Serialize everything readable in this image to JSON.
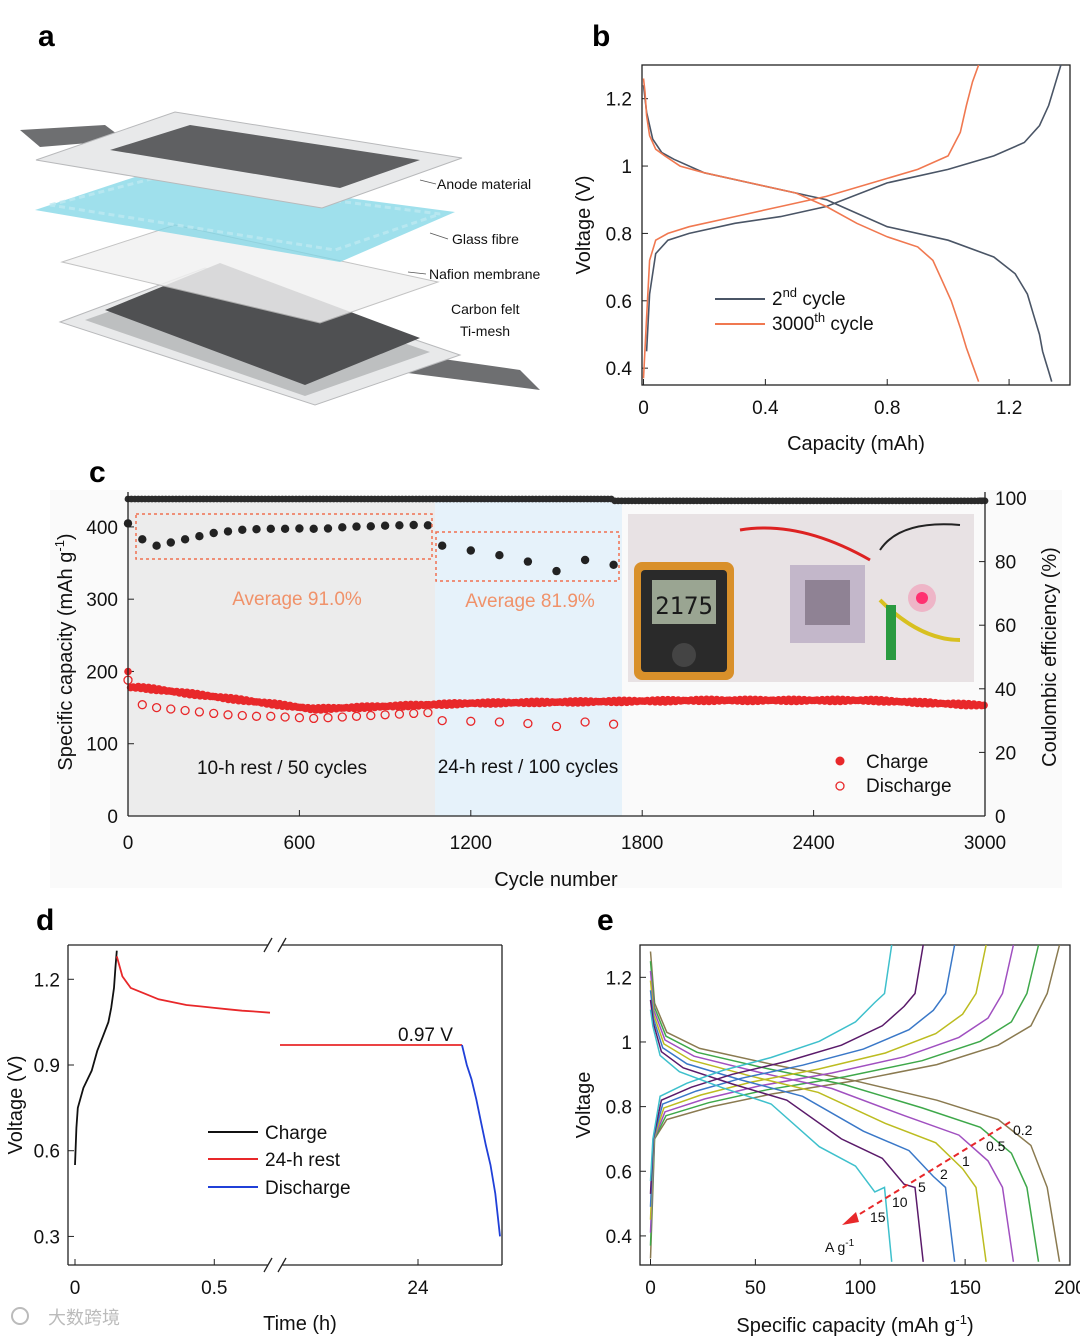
{
  "watermark": "大数跨境",
  "chart_data": [
    {
      "panel": "a",
      "type": "diagram",
      "labels": [
        "Anode material",
        "Glass fibre",
        "Nafion membrane",
        "Carbon felt",
        "Ti-mesh"
      ],
      "colors": {
        "anode": "#5f6062",
        "glass": "#7fd6e6",
        "felt": "#555555",
        "frame": "#e6e7e8"
      }
    },
    {
      "panel": "b",
      "type": "line",
      "xlabel": "Capacity (mAh)",
      "ylabel": "Voltage (V)",
      "xlim": [
        -0.005,
        1.4
      ],
      "ylim": [
        0.35,
        1.3
      ],
      "xticks": [
        0,
        0.4,
        0.8,
        1.2
      ],
      "xtick_labels": [
        "0",
        "0.4",
        "0.8",
        "1.2"
      ],
      "yticks": [
        0.4,
        0.6,
        0.8,
        1.0,
        1.2
      ],
      "ytick_labels": [
        "0.4",
        "0.6",
        "0.8",
        "1",
        "1.2"
      ],
      "legend": [
        {
          "sup": "nd",
          "tail": " cycle"
        },
        {
          "sup": "th",
          "tail": " cycle"
        }
      ],
      "series": [
        {
          "name": "2nd cycle",
          "color": "#4a5566",
          "charge": {
            "x": [
              0.01,
              0.02,
              0.04,
              0.08,
              0.15,
              0.3,
              0.45,
              0.6,
              0.8,
              1.0,
              1.15,
              1.25,
              1.3,
              1.33,
              1.35,
              1.37
            ],
            "y": [
              0.45,
              0.62,
              0.74,
              0.78,
              0.8,
              0.83,
              0.85,
              0.88,
              0.95,
              0.99,
              1.03,
              1.07,
              1.12,
              1.18,
              1.24,
              1.3
            ]
          },
          "discharge": {
            "x": [
              0.0,
              0.01,
              0.03,
              0.06,
              0.1,
              0.2,
              0.4,
              0.55,
              0.6,
              0.65,
              0.8,
              1.0,
              1.15,
              1.22,
              1.26,
              1.28,
              1.3,
              1.31,
              1.32,
              1.33,
              1.34
            ],
            "y": [
              1.24,
              1.16,
              1.08,
              1.04,
              1.02,
              0.98,
              0.94,
              0.91,
              0.9,
              0.88,
              0.82,
              0.78,
              0.73,
              0.68,
              0.62,
              0.56,
              0.5,
              0.45,
              0.42,
              0.39,
              0.36
            ]
          }
        },
        {
          "name": "3000th cycle",
          "color": "#f07850",
          "charge": {
            "x": [
              0.0,
              0.01,
              0.02,
              0.04,
              0.08,
              0.15,
              0.3,
              0.45,
              0.6,
              0.75,
              0.9,
              1.0,
              1.04,
              1.06,
              1.08,
              1.1
            ],
            "y": [
              0.37,
              0.55,
              0.72,
              0.78,
              0.8,
              0.82,
              0.85,
              0.88,
              0.91,
              0.95,
              0.99,
              1.03,
              1.1,
              1.18,
              1.25,
              1.3
            ]
          },
          "discharge": {
            "x": [
              0.0,
              0.005,
              0.01,
              0.02,
              0.04,
              0.07,
              0.12,
              0.2,
              0.35,
              0.5,
              0.6,
              0.7,
              0.8,
              0.9,
              0.95,
              0.98,
              1.01,
              1.04,
              1.06,
              1.08,
              1.1
            ],
            "y": [
              1.26,
              1.22,
              1.15,
              1.09,
              1.05,
              1.03,
              1.0,
              0.98,
              0.95,
              0.92,
              0.88,
              0.83,
              0.79,
              0.76,
              0.72,
              0.66,
              0.6,
              0.52,
              0.46,
              0.41,
              0.36
            ]
          }
        }
      ]
    },
    {
      "panel": "c",
      "type": "scatter",
      "xlabel": "Cycle number",
      "ylabel": "Specific capacity (mAh g",
      "ylabel_sup": "-1",
      "ylabel_tail": ")",
      "y2label": "Coulombic efficiency (%)",
      "xlim": [
        0,
        3000
      ],
      "ylim": [
        0,
        440
      ],
      "y2lim": [
        0,
        100
      ],
      "xticks": [
        0,
        600,
        1200,
        1800,
        2400,
        3000
      ],
      "yticks": [
        0,
        100,
        200,
        300,
        400
      ],
      "y2ticks": [
        0,
        20,
        40,
        60,
        80,
        100
      ],
      "regions": [
        {
          "label": "10-h rest / 50 cycles",
          "x0": 0,
          "x1": 1080,
          "color": "#ececec"
        },
        {
          "label": "24-h rest / 100 cycles",
          "x0": 1080,
          "x1": 1730,
          "color": "#e6f2fa"
        }
      ],
      "annotations": [
        "Average 91.0%",
        "Average 81.9%"
      ],
      "annotation_color": "#f0926a",
      "photo_readout": "2175",
      "legend": [
        "Charge",
        "Discharge"
      ],
      "charge_color": "#e8282a",
      "ce_rest_x": [
        0,
        50,
        100,
        150,
        200,
        250,
        300,
        350,
        400,
        450,
        500,
        550,
        600,
        650,
        700,
        750,
        800,
        850,
        900,
        950,
        1000,
        1050,
        1100,
        1200,
        1300,
        1400,
        1500,
        1600,
        1700
      ],
      "ce_rest_y": [
        92,
        87,
        85,
        86,
        87,
        88,
        89,
        89.5,
        90,
        90.2,
        90.3,
        90.3,
        90.4,
        90.3,
        90.4,
        90.8,
        91,
        91.1,
        91.3,
        91.4,
        91.5,
        91.4,
        85,
        83.5,
        82,
        80,
        77,
        80.5,
        79
      ]
    },
    {
      "panel": "d",
      "type": "line",
      "xlabel": "Time (h)",
      "ylabel": "Voltage (V)",
      "ylim": [
        0.2,
        1.32
      ],
      "yticks": [
        0.3,
        0.6,
        0.9,
        1.2
      ],
      "ytick_labels": [
        "0.3",
        "0.6",
        "0.9",
        "1.2"
      ],
      "xtick_labels": [
        "0",
        "0.5",
        "24"
      ],
      "annotation": "0.97 V",
      "legend": [
        "Charge",
        "24-h rest",
        "Discharge"
      ],
      "colors": [
        "#111111",
        "#e8282a",
        "#2040d8"
      ],
      "charge": {
        "t": [
          0,
          0.005,
          0.01,
          0.03,
          0.06,
          0.08,
          0.1,
          0.12,
          0.13,
          0.14,
          0.145,
          0.15
        ],
        "v": [
          0.55,
          0.68,
          0.75,
          0.82,
          0.88,
          0.95,
          1.0,
          1.05,
          1.1,
          1.17,
          1.24,
          1.3
        ]
      },
      "rest1": {
        "t": [
          0.15,
          0.17,
          0.2,
          0.25,
          0.3,
          0.35,
          0.4,
          0.45,
          0.5,
          0.55,
          0.6,
          0.65,
          0.7
        ],
        "v": [
          1.28,
          1.21,
          1.17,
          1.15,
          1.13,
          1.12,
          1.11,
          1.105,
          1.1,
          1.095,
          1.09,
          1.087,
          1.083
        ]
      },
      "rest2_v": 0.97,
      "discharge": {
        "v": [
          0.97,
          0.9,
          0.85,
          0.78,
          0.7,
          0.62,
          0.55,
          0.45,
          0.3
        ]
      }
    },
    {
      "panel": "e",
      "type": "line",
      "xlabel": "Specific capacity (mAh g",
      "xlabel_sup": "-1",
      "xlabel_tail": ")",
      "ylabel": "Voltage",
      "xlim": [
        -5,
        200
      ],
      "ylim": [
        0.31,
        1.3
      ],
      "xticks": [
        0,
        50,
        100,
        150,
        200
      ],
      "yticks": [
        0.4,
        0.6,
        0.8,
        1.0,
        1.2
      ],
      "ytick_labels": [
        "0.4",
        "0.6",
        "0.8",
        "1",
        "1.2"
      ],
      "rate_labels": [
        "0.2",
        "0.5",
        "1",
        "2",
        "5",
        "10",
        "15"
      ],
      "rate_unit": "A g",
      "rate_unit_sup": "-1",
      "rates": [
        0.2,
        0.5,
        1,
        2,
        5,
        10,
        15
      ],
      "capacities": [
        195,
        185,
        173,
        160,
        145,
        130,
        115
      ],
      "colors": [
        "#8a7a50",
        "#3ea84a",
        "#a050c0",
        "#bcbc20",
        "#3a78c8",
        "#5a1a6a",
        "#3ec0cc"
      ]
    }
  ]
}
